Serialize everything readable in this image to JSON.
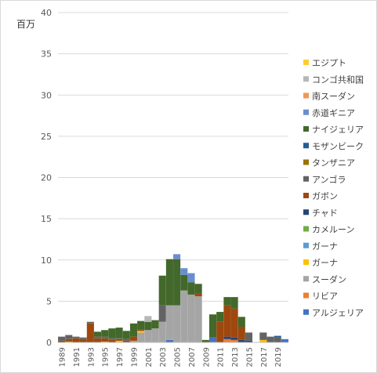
{
  "chart_data": {
    "type": "bar",
    "stacked": true,
    "unit_label": "百万",
    "ylim": [
      0,
      40
    ],
    "yticks": [
      0,
      5,
      10,
      15,
      20,
      25,
      30,
      35,
      40
    ],
    "grid": true,
    "legend_position": "right",
    "categories": [
      "1989",
      "1990",
      "1991",
      "1992",
      "1993",
      "1994",
      "1995",
      "1996",
      "1997",
      "1998",
      "1999",
      "2000",
      "2001",
      "2002",
      "2003",
      "2004",
      "2005",
      "2006",
      "2007",
      "2008",
      "2009",
      "2010",
      "2011",
      "2012",
      "2013",
      "2014",
      "2015",
      "2016",
      "2017",
      "2018",
      "2019",
      "2020"
    ],
    "x_tick_labels": [
      "1989",
      "1991",
      "1993",
      "1995",
      "1997",
      "1999",
      "2001",
      "2003",
      "2005",
      "2007",
      "2009",
      "2011",
      "2013",
      "2015",
      "2017",
      "2019"
    ],
    "series": [
      {
        "name": "アルジェリア",
        "color": "#4472c4",
        "values": [
          0,
          0,
          0,
          0,
          0,
          0,
          0,
          0,
          0,
          0,
          0,
          0,
          0,
          0,
          0,
          0.3,
          0,
          0,
          0,
          0,
          0,
          0.6,
          0,
          0,
          0,
          0,
          0,
          0,
          0,
          0,
          0,
          0.4
        ]
      },
      {
        "name": "リビア",
        "color": "#ed7d31",
        "values": [
          0,
          0,
          0,
          0,
          0,
          0,
          0,
          0,
          0,
          0,
          0,
          0,
          0,
          0,
          0,
          0,
          0,
          0,
          0,
          0,
          0,
          0,
          0,
          0.4,
          0.3,
          0,
          0,
          0,
          0,
          0,
          0,
          0
        ]
      },
      {
        "name": "スーダン",
        "color": "#a5a5a5",
        "values": [
          0,
          0,
          0,
          0,
          0,
          0,
          0,
          0,
          0,
          0,
          0.2,
          1.2,
          1.5,
          1.7,
          2.5,
          4.2,
          4.5,
          6.3,
          5.8,
          5.6,
          0,
          0,
          0,
          0,
          0,
          0,
          0,
          0,
          0,
          0,
          0,
          0
        ]
      },
      {
        "name": "ガーナ",
        "color": "#ffc000",
        "values": [
          0,
          0.1,
          0,
          0,
          0,
          0,
          0.1,
          0,
          0.2,
          0,
          0,
          0.2,
          0,
          0,
          0,
          0,
          0,
          0,
          0,
          0,
          0,
          0,
          0,
          0,
          0,
          0,
          0,
          0,
          0.3,
          0,
          0,
          0
        ]
      },
      {
        "name": "ガーナ",
        "color": "#5b9bd5",
        "values": [
          0,
          0,
          0,
          0,
          0,
          0,
          0,
          0,
          0,
          0,
          0,
          0,
          0,
          0,
          0,
          0,
          0,
          0,
          0,
          0,
          0,
          0,
          0,
          0,
          0,
          0,
          0,
          0,
          0,
          0,
          0,
          0
        ]
      },
      {
        "name": "カメルーン",
        "color": "#70ad47",
        "values": [
          0,
          0,
          0,
          0,
          0,
          0,
          0,
          0,
          0,
          0,
          0,
          0,
          0,
          0,
          0,
          0,
          0,
          0,
          0,
          0,
          0,
          0,
          0,
          0,
          0,
          0,
          0,
          0,
          0,
          0,
          0,
          0
        ]
      },
      {
        "name": "チャド",
        "color": "#264478",
        "values": [
          0,
          0,
          0,
          0,
          0,
          0,
          0,
          0,
          0,
          0,
          0,
          0,
          0,
          0,
          0,
          0,
          0,
          0,
          0,
          0,
          0,
          0,
          0,
          0.3,
          0.3,
          0.3,
          0.2,
          0,
          0,
          0,
          0,
          0
        ]
      },
      {
        "name": "ガボン",
        "color": "#9e480e",
        "values": [
          0.2,
          0.3,
          0.5,
          0.4,
          2.3,
          0.5,
          0.4,
          0.3,
          0.2,
          0.2,
          0.5,
          0.2,
          0,
          0,
          0,
          0,
          0,
          0,
          0,
          0.3,
          0,
          0,
          2.5,
          3.8,
          3.5,
          1.6,
          0,
          0,
          0,
          0,
          0,
          0
        ]
      },
      {
        "name": "アンゴラ",
        "color": "#636363",
        "values": [
          0.5,
          0.5,
          0.2,
          0.2,
          0.2,
          0.2,
          0.2,
          0.2,
          0.1,
          0.2,
          0,
          0,
          0,
          0,
          2.0,
          0,
          0,
          0,
          0,
          0,
          0,
          0,
          0,
          0,
          0,
          0,
          1.0,
          0,
          0.9,
          0.7,
          0.6,
          0
        ]
      },
      {
        "name": "タンザニア",
        "color": "#997300",
        "values": [
          0,
          0,
          0,
          0,
          0,
          0,
          0,
          0,
          0,
          0,
          0,
          0,
          0,
          0,
          0,
          0,
          0,
          0,
          0,
          0,
          0,
          0,
          0,
          0,
          0,
          0,
          0,
          0,
          0,
          0,
          0,
          0
        ]
      },
      {
        "name": "モザンビーク",
        "color": "#255e91",
        "values": [
          0,
          0,
          0,
          0,
          0,
          0,
          0,
          0,
          0,
          0,
          0,
          0,
          0,
          0,
          0,
          0,
          0,
          0,
          0,
          0,
          0,
          0,
          0,
          0,
          0,
          0,
          0,
          0,
          0,
          0,
          0.2,
          0
        ]
      },
      {
        "name": "ナイジェリア",
        "color": "#43682b",
        "values": [
          0,
          0,
          0,
          0,
          0,
          0.6,
          0.8,
          1.2,
          1.3,
          1.0,
          1.6,
          1.0,
          1.0,
          1.0,
          3.6,
          5.6,
          5.6,
          1.9,
          1.5,
          1.2,
          0.3,
          2.8,
          1.2,
          1.0,
          1.4,
          1.2,
          0,
          0,
          0,
          0,
          0,
          0
        ]
      },
      {
        "name": "赤道ギニア",
        "color": "#698ed0",
        "values": [
          0,
          0,
          0,
          0,
          0,
          0,
          0,
          0,
          0,
          0,
          0,
          0,
          0,
          0,
          0,
          0,
          0.6,
          0.8,
          1.1,
          0,
          0,
          0,
          0,
          0,
          0,
          0,
          0,
          0,
          0,
          0,
          0,
          0
        ]
      },
      {
        "name": "南スーダン",
        "color": "#f1975a",
        "values": [
          0,
          0,
          0,
          0,
          0,
          0,
          0,
          0,
          0,
          0,
          0,
          0,
          0,
          0,
          0,
          0,
          0,
          0,
          0,
          0,
          0,
          0,
          0,
          0,
          0,
          0,
          0,
          0,
          0,
          0,
          0,
          0
        ]
      },
      {
        "name": "コンゴ共和国",
        "color": "#b7b7b7",
        "values": [
          0,
          0,
          0,
          0,
          0,
          0,
          0,
          0,
          0,
          0,
          0,
          0,
          0.7,
          0,
          0,
          0,
          0,
          0,
          0,
          0,
          0,
          0,
          0,
          0,
          0,
          0,
          0,
          0,
          0,
          0,
          0,
          0
        ]
      },
      {
        "name": "エジプト",
        "color": "#ffcd33",
        "values": [
          0,
          0,
          0,
          0,
          0,
          0,
          0,
          0,
          0,
          0,
          0,
          0,
          0,
          0,
          0,
          0,
          0,
          0,
          0,
          0,
          0,
          0,
          0,
          0,
          0,
          0,
          0,
          0,
          0,
          0,
          0,
          0
        ]
      }
    ]
  }
}
